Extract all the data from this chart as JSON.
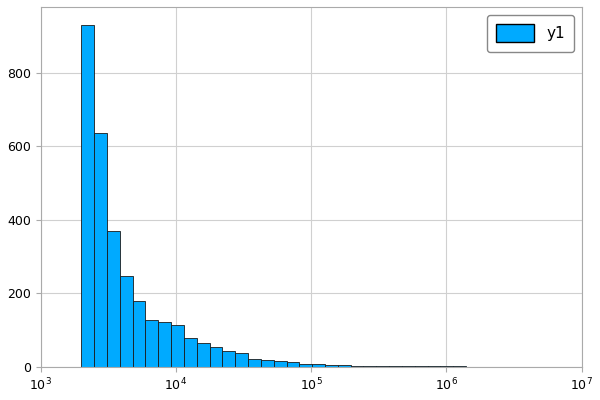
{
  "bar_color": "#00AAFF",
  "bar_edgecolor": "#1a1a1a",
  "legend_label": "y1",
  "xlim": [
    1000.0,
    10000000.0
  ],
  "ylim": [
    0,
    980
  ],
  "yticks": [
    0,
    200,
    400,
    600,
    800
  ],
  "grid_color": "#d0d0d0",
  "background_color": "#ffffff",
  "bar_heights": [
    930,
    637,
    370,
    248,
    178,
    127,
    123,
    113,
    78,
    65,
    55,
    44,
    38,
    22,
    18,
    15,
    12,
    8,
    7,
    5,
    4,
    3,
    2,
    2,
    1,
    1,
    1,
    1,
    1,
    1,
    0,
    0,
    0,
    0,
    0,
    0,
    0,
    0,
    0
  ],
  "log_xmin": 3.3,
  "log_xmax": 7.0,
  "num_bins": 39
}
